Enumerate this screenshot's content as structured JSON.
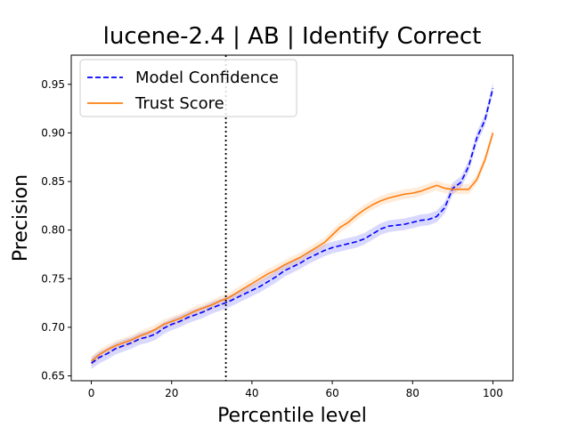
{
  "chart_data": {
    "type": "line",
    "title": "lucene-2.4 | AB | Identify Correct",
    "xlabel": "Percentile level",
    "ylabel": "Precision",
    "xlim": [
      -5,
      105
    ],
    "ylim": [
      0.645,
      0.98
    ],
    "xticks": [
      0,
      20,
      40,
      60,
      80,
      100
    ],
    "xtick_labels": [
      "0",
      "20",
      "40",
      "60",
      "80",
      "100"
    ],
    "yticks": [
      0.65,
      0.7,
      0.75,
      0.8,
      0.85,
      0.9,
      0.95
    ],
    "ytick_labels": [
      "0.65",
      "0.70",
      "0.75",
      "0.80",
      "0.85",
      "0.90",
      "0.95"
    ],
    "legend_position": "top-left",
    "vertical_line": {
      "x": 33.5,
      "style": "dotted",
      "color": "#000000"
    },
    "series": [
      {
        "name": "Model Confidence",
        "color": "#0000ff",
        "style": "dashed",
        "band": 0.006,
        "x": [
          0,
          2,
          4,
          6,
          8,
          10,
          12,
          14,
          16,
          18,
          20,
          22,
          24,
          26,
          28,
          30,
          32,
          34,
          36,
          38,
          40,
          42,
          44,
          46,
          48,
          50,
          52,
          54,
          56,
          58,
          60,
          62,
          64,
          66,
          68,
          70,
          72,
          74,
          76,
          78,
          80,
          82,
          84,
          86,
          88,
          90,
          92,
          94,
          96,
          98,
          100
        ],
        "y": [
          0.663,
          0.669,
          0.673,
          0.678,
          0.681,
          0.684,
          0.688,
          0.69,
          0.693,
          0.699,
          0.703,
          0.706,
          0.71,
          0.713,
          0.716,
          0.72,
          0.723,
          0.726,
          0.73,
          0.734,
          0.738,
          0.742,
          0.747,
          0.752,
          0.758,
          0.762,
          0.766,
          0.771,
          0.775,
          0.779,
          0.782,
          0.784,
          0.786,
          0.788,
          0.791,
          0.796,
          0.801,
          0.804,
          0.805,
          0.806,
          0.808,
          0.81,
          0.811,
          0.814,
          0.823,
          0.843,
          0.849,
          0.866,
          0.895,
          0.913,
          0.946
        ]
      },
      {
        "name": "Trust Score",
        "color": "#ff7f0e",
        "style": "solid",
        "band": 0.005,
        "x": [
          0,
          2,
          4,
          6,
          8,
          10,
          12,
          14,
          16,
          18,
          20,
          22,
          24,
          26,
          28,
          30,
          32,
          34,
          36,
          38,
          40,
          42,
          44,
          46,
          48,
          50,
          52,
          54,
          56,
          58,
          60,
          62,
          64,
          66,
          68,
          70,
          72,
          74,
          76,
          78,
          80,
          82,
          84,
          86,
          88,
          90,
          92,
          94,
          96,
          98,
          100
        ],
        "y": [
          0.665,
          0.672,
          0.677,
          0.681,
          0.684,
          0.687,
          0.691,
          0.694,
          0.698,
          0.703,
          0.706,
          0.709,
          0.713,
          0.717,
          0.72,
          0.723,
          0.727,
          0.73,
          0.735,
          0.74,
          0.745,
          0.75,
          0.755,
          0.759,
          0.764,
          0.768,
          0.772,
          0.777,
          0.782,
          0.787,
          0.795,
          0.803,
          0.808,
          0.815,
          0.821,
          0.826,
          0.83,
          0.833,
          0.835,
          0.837,
          0.838,
          0.84,
          0.843,
          0.846,
          0.843,
          0.842,
          0.842,
          0.842,
          0.852,
          0.872,
          0.9
        ]
      }
    ]
  }
}
